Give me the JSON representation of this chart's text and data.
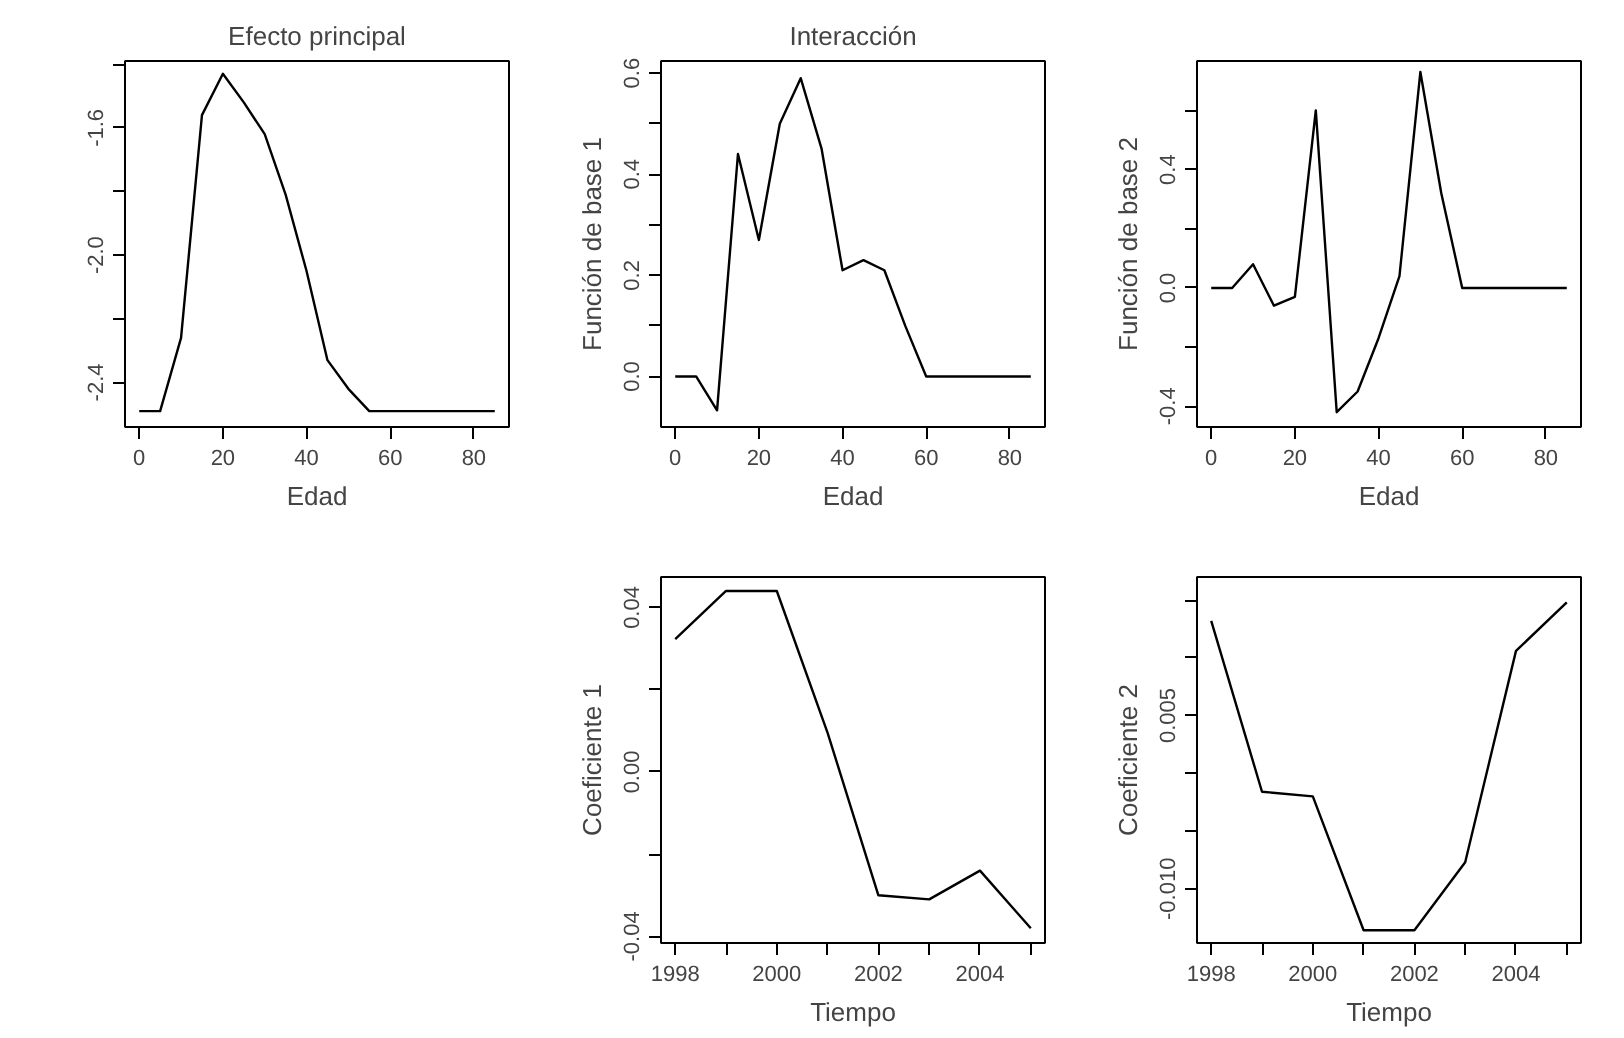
{
  "chart_data": [
    {
      "type": "line",
      "title": "Efecto principal",
      "xlabel": "Edad",
      "x": [
        0,
        5,
        10,
        15,
        20,
        25,
        30,
        35,
        40,
        45,
        50,
        55,
        60,
        65,
        70,
        75,
        80,
        85
      ],
      "series": [
        {
          "color": "#000000",
          "values": [
            -2.49,
            -2.49,
            -2.26,
            -1.56,
            -1.43,
            -1.52,
            -1.62,
            -1.81,
            -2.05,
            -2.33,
            -2.42,
            -2.49,
            -2.49,
            -2.49,
            -2.49,
            -2.49,
            -2.49,
            -2.49
          ]
        }
      ],
      "xlim": [
        -3.4,
        88.4
      ],
      "xticks": [
        0,
        20,
        40,
        60,
        80
      ],
      "ylim": [
        -2.54,
        -1.39
      ],
      "yticks": [
        {
          "value": -2.4,
          "label": "-2.4"
        },
        {
          "value": -2.2,
          "label": null
        },
        {
          "value": -2.0,
          "label": "-2.0"
        },
        {
          "value": -1.8,
          "label": null
        },
        {
          "value": -1.6,
          "label": "-1.6"
        },
        {
          "value": -1.4,
          "label": null
        }
      ],
      "grid": false,
      "marker": "none",
      "line_style": "solid"
    },
    {
      "type": "line",
      "title": "Interacción",
      "xlabel": "Edad",
      "ylabel": "Función de base 1",
      "x": [
        0,
        5,
        10,
        15,
        20,
        25,
        30,
        35,
        40,
        45,
        50,
        55,
        60,
        65,
        70,
        75,
        80,
        85
      ],
      "series": [
        {
          "color": "#000000",
          "values": [
            0,
            0,
            -0.067,
            0.44,
            0.27,
            0.5,
            0.59,
            0.45,
            0.21,
            0.23,
            0.21,
            0.1,
            0,
            0,
            0,
            0,
            0,
            0
          ]
        }
      ],
      "xlim": [
        -3.4,
        88.4
      ],
      "xticks": [
        0,
        20,
        40,
        60,
        80
      ],
      "ylim": [
        -0.1,
        0.624
      ],
      "yticks": [
        {
          "value": 0.0,
          "label": "0.0"
        },
        {
          "value": 0.1,
          "label": null
        },
        {
          "value": 0.2,
          "label": "0.2"
        },
        {
          "value": 0.3,
          "label": null
        },
        {
          "value": 0.4,
          "label": "0.4"
        },
        {
          "value": 0.5,
          "label": null
        },
        {
          "value": 0.6,
          "label": "0.6"
        }
      ],
      "grid": false,
      "marker": "none",
      "line_style": "solid"
    },
    {
      "type": "line",
      "xlabel": "Edad",
      "ylabel": "Función de base 2",
      "x": [
        0,
        5,
        10,
        15,
        20,
        25,
        30,
        35,
        40,
        45,
        50,
        55,
        60,
        65,
        70,
        75,
        80,
        85
      ],
      "series": [
        {
          "color": "#000000",
          "values": [
            0,
            0,
            0.08,
            -0.06,
            -0.03,
            0.6,
            -0.42,
            -0.35,
            -0.17,
            0.04,
            0.73,
            0.32,
            0,
            0,
            0,
            0,
            0,
            0
          ]
        }
      ],
      "xlim": [
        -3.4,
        88.4
      ],
      "xticks": [
        0,
        20,
        40,
        60,
        80
      ],
      "ylim": [
        -0.47,
        0.767
      ],
      "yticks": [
        {
          "value": -0.4,
          "label": "-0.4"
        },
        {
          "value": -0.2,
          "label": null
        },
        {
          "value": 0.0,
          "label": "0.0"
        },
        {
          "value": 0.2,
          "label": null
        },
        {
          "value": 0.4,
          "label": "0.4"
        },
        {
          "value": 0.6,
          "label": null
        }
      ],
      "grid": false,
      "marker": "none",
      "line_style": "solid"
    },
    {
      "type": "line",
      "xlabel": "Tiempo",
      "ylabel": "Coeficiente 1",
      "x": [
        1998,
        1999,
        2000,
        2001,
        2002,
        2003,
        2004,
        2005
      ],
      "series": [
        {
          "color": "#000000",
          "values": [
            0.0323,
            0.044,
            0.044,
            0.0095,
            -0.03,
            -0.031,
            -0.024,
            -0.038
          ]
        }
      ],
      "xlim": [
        1997.72,
        2005.28
      ],
      "xticks": [
        1998,
        {
          "value": 1999,
          "label": null
        },
        2000,
        {
          "value": 2001,
          "label": null
        },
        2002,
        {
          "value": 2003,
          "label": null
        },
        2004,
        {
          "value": 2005,
          "label": null
        }
      ],
      "ylim": [
        -0.0416,
        0.0474
      ],
      "yticks": [
        {
          "value": -0.04,
          "label": "-0.04"
        },
        {
          "value": -0.02,
          "label": null
        },
        {
          "value": 0.0,
          "label": "0.00"
        },
        {
          "value": 0.02,
          "label": null
        },
        {
          "value": 0.04,
          "label": "0.04"
        }
      ],
      "grid": false,
      "marker": "none",
      "line_style": "solid"
    },
    {
      "type": "line",
      "xlabel": "Tiempo",
      "ylabel": "Coeficiente 2",
      "x": [
        1998,
        1999,
        2000,
        2001,
        2002,
        2003,
        2004,
        2005
      ],
      "series": [
        {
          "color": "#000000",
          "values": [
            0.0132,
            -0.0016,
            -0.002,
            -0.0136,
            -0.0136,
            -0.0077,
            0.0106,
            0.0148
          ]
        }
      ],
      "xlim": [
        1997.72,
        2005.28
      ],
      "xticks": [
        1998,
        {
          "value": 1999,
          "label": null
        },
        2000,
        {
          "value": 2001,
          "label": null
        },
        2002,
        {
          "value": 2003,
          "label": null
        },
        2004,
        {
          "value": 2005,
          "label": null
        }
      ],
      "ylim": [
        -0.0147,
        0.017
      ],
      "yticks": [
        {
          "value": -0.01,
          "label": "-0.010"
        },
        {
          "value": -0.005,
          "label": null
        },
        {
          "value": 0.0,
          "label": null
        },
        {
          "value": 0.005,
          "label": "0.005"
        },
        {
          "value": 0.01,
          "label": null
        },
        {
          "value": 0.015,
          "label": null
        }
      ],
      "grid": false,
      "marker": "none",
      "line_style": "solid"
    }
  ]
}
